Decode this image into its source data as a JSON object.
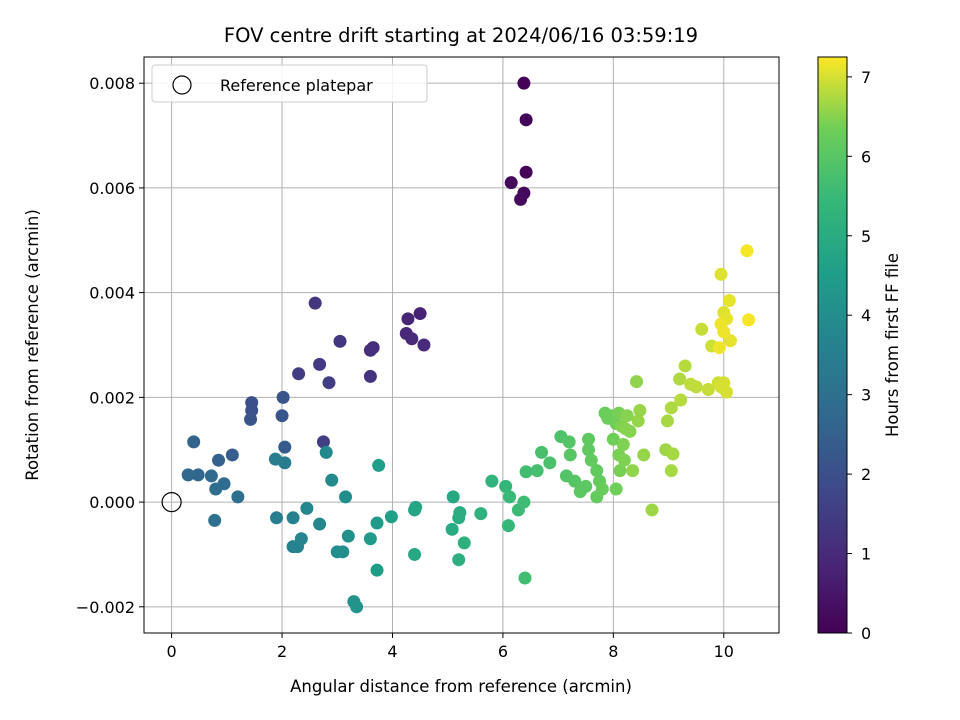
{
  "chart_data": {
    "type": "scatter",
    "title": "FOV centre drift starting at 2024/06/16 03:59:19",
    "xlabel": "Angular distance from reference (arcmin)",
    "ylabel": "Rotation from reference (arcmin)",
    "xlim": [
      -0.5,
      11.0
    ],
    "ylim": [
      -0.0025,
      0.0085
    ],
    "xticks": [
      0,
      2,
      4,
      6,
      8,
      10
    ],
    "xtick_labels": [
      "0",
      "2",
      "4",
      "6",
      "8",
      "10"
    ],
    "yticks": [
      -0.002,
      0.0,
      0.002,
      0.004,
      0.006,
      0.008
    ],
    "ytick_labels": [
      "−0.002",
      "0.000",
      "0.002",
      "0.004",
      "0.006",
      "0.008"
    ],
    "grid": true,
    "legend": {
      "position": "top-left",
      "entries": [
        "Reference platepar"
      ]
    },
    "reference_point": {
      "x": 0,
      "y": 0
    },
    "colorbar": {
      "label": "Hours from first FF file",
      "colormap": "viridis",
      "range": [
        0,
        7.25
      ],
      "ticks": [
        0,
        1,
        2,
        3,
        4,
        5,
        6,
        7
      ],
      "tick_labels": [
        "0",
        "1",
        "2",
        "3",
        "4",
        "5",
        "6",
        "7"
      ]
    },
    "series": [
      {
        "x": [
          6.38,
          6.42,
          6.42,
          6.15,
          6.38,
          6.32,
          4.5,
          4.28,
          4.25,
          4.35,
          4.57,
          3.65,
          3.6,
          3.6,
          2.6,
          3.05,
          2.68,
          2.3,
          2.85,
          2.75,
          1.45,
          1.45,
          1.43,
          2.02,
          2.0,
          2.05,
          1.1,
          0.85,
          0.4,
          0.48,
          0.3,
          0.72,
          0.95,
          0.8,
          1.2,
          0.78,
          2.05,
          1.88,
          1.9,
          2.2,
          2.2,
          2.28,
          2.35,
          2.45,
          2.68,
          2.8,
          2.9,
          3.0,
          3.1,
          3.15,
          3.2,
          3.3,
          3.35,
          3.6,
          3.72,
          3.72,
          3.75,
          3.98,
          4.4,
          4.42,
          4.4,
          5.1,
          5.08,
          5.2,
          5.22,
          5.2,
          5.3,
          5.6,
          5.8,
          6.05,
          6.1,
          6.12,
          6.28,
          6.38,
          6.42,
          6.4,
          6.62,
          6.7,
          6.85,
          7.05,
          7.15,
          7.2,
          7.22,
          7.3,
          7.4,
          7.5,
          7.55,
          7.55,
          7.6,
          7.7,
          7.7,
          7.75,
          7.8,
          7.85,
          7.9,
          7.95,
          8.0,
          8.05,
          8.05,
          8.1,
          8.1,
          8.12,
          8.15,
          8.18,
          8.2,
          8.22,
          8.25,
          8.3,
          8.35,
          8.42,
          8.45,
          8.48,
          8.55,
          8.7,
          8.95,
          8.98,
          9.05,
          9.08,
          9.05,
          9.2,
          9.22,
          9.3,
          9.4,
          9.5,
          9.6,
          9.72,
          9.78,
          9.9,
          9.95,
          10.0,
          10.05,
          9.95,
          10.0,
          10.1,
          10.05,
          10.12,
          10.0,
          9.95,
          9.92,
          10.42,
          10.45
        ],
        "y": [
          0.008,
          0.0073,
          0.0063,
          0.0061,
          0.0059,
          0.00578,
          0.0036,
          0.0035,
          0.00322,
          0.00312,
          0.003,
          0.00295,
          0.0029,
          0.0024,
          0.0038,
          0.00307,
          0.00263,
          0.00245,
          0.00228,
          0.00115,
          0.0019,
          0.00175,
          0.00158,
          0.002,
          0.00165,
          0.00105,
          0.0009,
          0.0008,
          0.00115,
          0.00052,
          0.00052,
          0.0005,
          0.00035,
          0.00025,
          0.0001,
          -0.00035,
          0.00075,
          0.00082,
          -0.0003,
          -0.0003,
          -0.00085,
          -0.00085,
          -0.0007,
          -0.00012,
          -0.00042,
          0.00095,
          0.00042,
          -0.00095,
          -0.00095,
          0.0001,
          -0.00065,
          -0.0019,
          -0.002,
          -0.0007,
          -0.0004,
          -0.0013,
          0.0007,
          -0.00028,
          -0.00015,
          -0.0001,
          -0.001,
          0.0001,
          -0.00052,
          -0.0003,
          -0.0002,
          -0.0011,
          -0.00078,
          -0.00022,
          0.0004,
          0.0003,
          -0.00045,
          0.0001,
          -0.00015,
          0.0,
          0.00058,
          -0.00145,
          0.0006,
          0.00095,
          0.00075,
          0.00125,
          0.0005,
          0.00115,
          0.0009,
          0.0004,
          0.0002,
          0.0003,
          0.0012,
          0.001,
          0.0008,
          0.0006,
          0.0001,
          0.0004,
          0.00025,
          0.0017,
          0.0016,
          0.00165,
          0.0012,
          0.0015,
          0.00025,
          0.0017,
          0.0009,
          0.0006,
          0.00145,
          0.0011,
          0.0008,
          0.0014,
          0.00165,
          0.00135,
          0.0006,
          0.0023,
          0.00155,
          0.00175,
          0.0009,
          -0.00015,
          0.001,
          0.00155,
          0.0006,
          0.00092,
          0.0018,
          0.00235,
          0.00195,
          0.0026,
          0.00225,
          0.0022,
          0.0033,
          0.00215,
          0.00298,
          0.00228,
          0.0022,
          0.00228,
          0.0021,
          0.00435,
          0.00362,
          0.00385,
          0.0035,
          0.00308,
          0.00325,
          0.0034,
          0.00295,
          0.0048,
          0.00348
        ],
        "hours": [
          0.05,
          0.08,
          0.12,
          0.15,
          0.18,
          0.22,
          0.8,
          0.85,
          0.9,
          0.95,
          1.0,
          1.05,
          1.1,
          1.15,
          1.3,
          1.35,
          1.4,
          1.45,
          1.5,
          1.55,
          2.0,
          2.05,
          2.1,
          2.15,
          2.2,
          2.3,
          2.4,
          2.5,
          2.6,
          2.7,
          2.75,
          2.8,
          2.85,
          2.9,
          2.95,
          3.0,
          3.4,
          3.45,
          3.5,
          3.55,
          3.6,
          3.65,
          3.7,
          3.75,
          3.8,
          3.85,
          3.9,
          3.95,
          4.0,
          4.05,
          4.1,
          4.15,
          4.2,
          4.4,
          4.45,
          4.5,
          4.55,
          4.6,
          4.75,
          4.8,
          4.85,
          4.9,
          4.95,
          5.0,
          5.05,
          5.1,
          5.15,
          5.2,
          5.3,
          5.4,
          5.45,
          5.5,
          5.55,
          5.6,
          5.65,
          5.65,
          5.7,
          5.75,
          5.8,
          5.85,
          5.9,
          5.95,
          6.0,
          6.0,
          6.05,
          6.05,
          6.1,
          6.1,
          6.15,
          6.15,
          6.2,
          6.2,
          6.25,
          6.25,
          6.3,
          6.3,
          6.35,
          6.35,
          6.35,
          6.4,
          6.4,
          6.4,
          6.45,
          6.45,
          6.45,
          6.5,
          6.5,
          6.5,
          6.55,
          6.55,
          6.6,
          6.6,
          6.6,
          6.65,
          6.65,
          6.7,
          6.7,
          6.7,
          6.75,
          6.75,
          6.8,
          6.8,
          6.85,
          6.85,
          6.9,
          6.9,
          6.95,
          6.95,
          7.0,
          7.0,
          7.0,
          7.05,
          7.05,
          7.1,
          7.1,
          7.1,
          7.15,
          7.15,
          7.15,
          7.2,
          7.2
        ]
      }
    ]
  }
}
